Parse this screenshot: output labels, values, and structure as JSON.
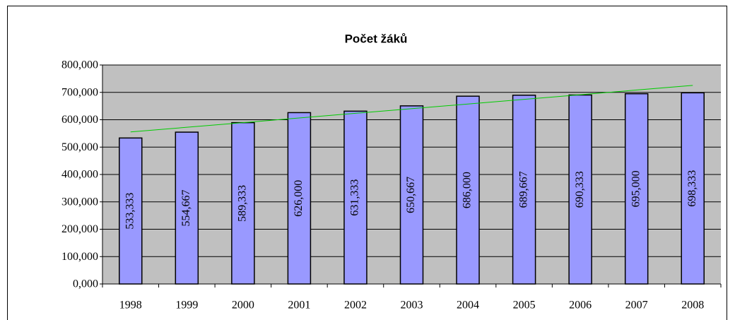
{
  "chart_data": {
    "type": "bar",
    "title": "Počet žáků",
    "categories": [
      "1998",
      "1999",
      "2000",
      "2001",
      "2002",
      "2003",
      "2004",
      "2005",
      "2006",
      "2007",
      "2008"
    ],
    "values": [
      533.333,
      554.667,
      589.333,
      626,
      631.333,
      650.667,
      686,
      689.667,
      690.333,
      695,
      698.333
    ],
    "value_labels": [
      "533,333",
      "554,667",
      "589,333",
      "626,000",
      "631,333",
      "650,667",
      "686,000",
      "689,667",
      "690,333",
      "695,000",
      "698,333"
    ],
    "color": "#9999ff",
    "ylim": [
      0,
      800
    ],
    "yticks": [
      {
        "value": 0,
        "label": "0,000"
      },
      {
        "value": 100,
        "label": "100,000"
      },
      {
        "value": 200,
        "label": "200,000"
      },
      {
        "value": 300,
        "label": "300,000"
      },
      {
        "value": 400,
        "label": "400,000"
      },
      {
        "value": 500,
        "label": "500,000"
      },
      {
        "value": 600,
        "label": "600,000"
      },
      {
        "value": 700,
        "label": "700,000"
      },
      {
        "value": 800,
        "label": "800,000"
      }
    ],
    "grid": true,
    "trendline": "linear",
    "trendline_color": "#00cc00"
  }
}
